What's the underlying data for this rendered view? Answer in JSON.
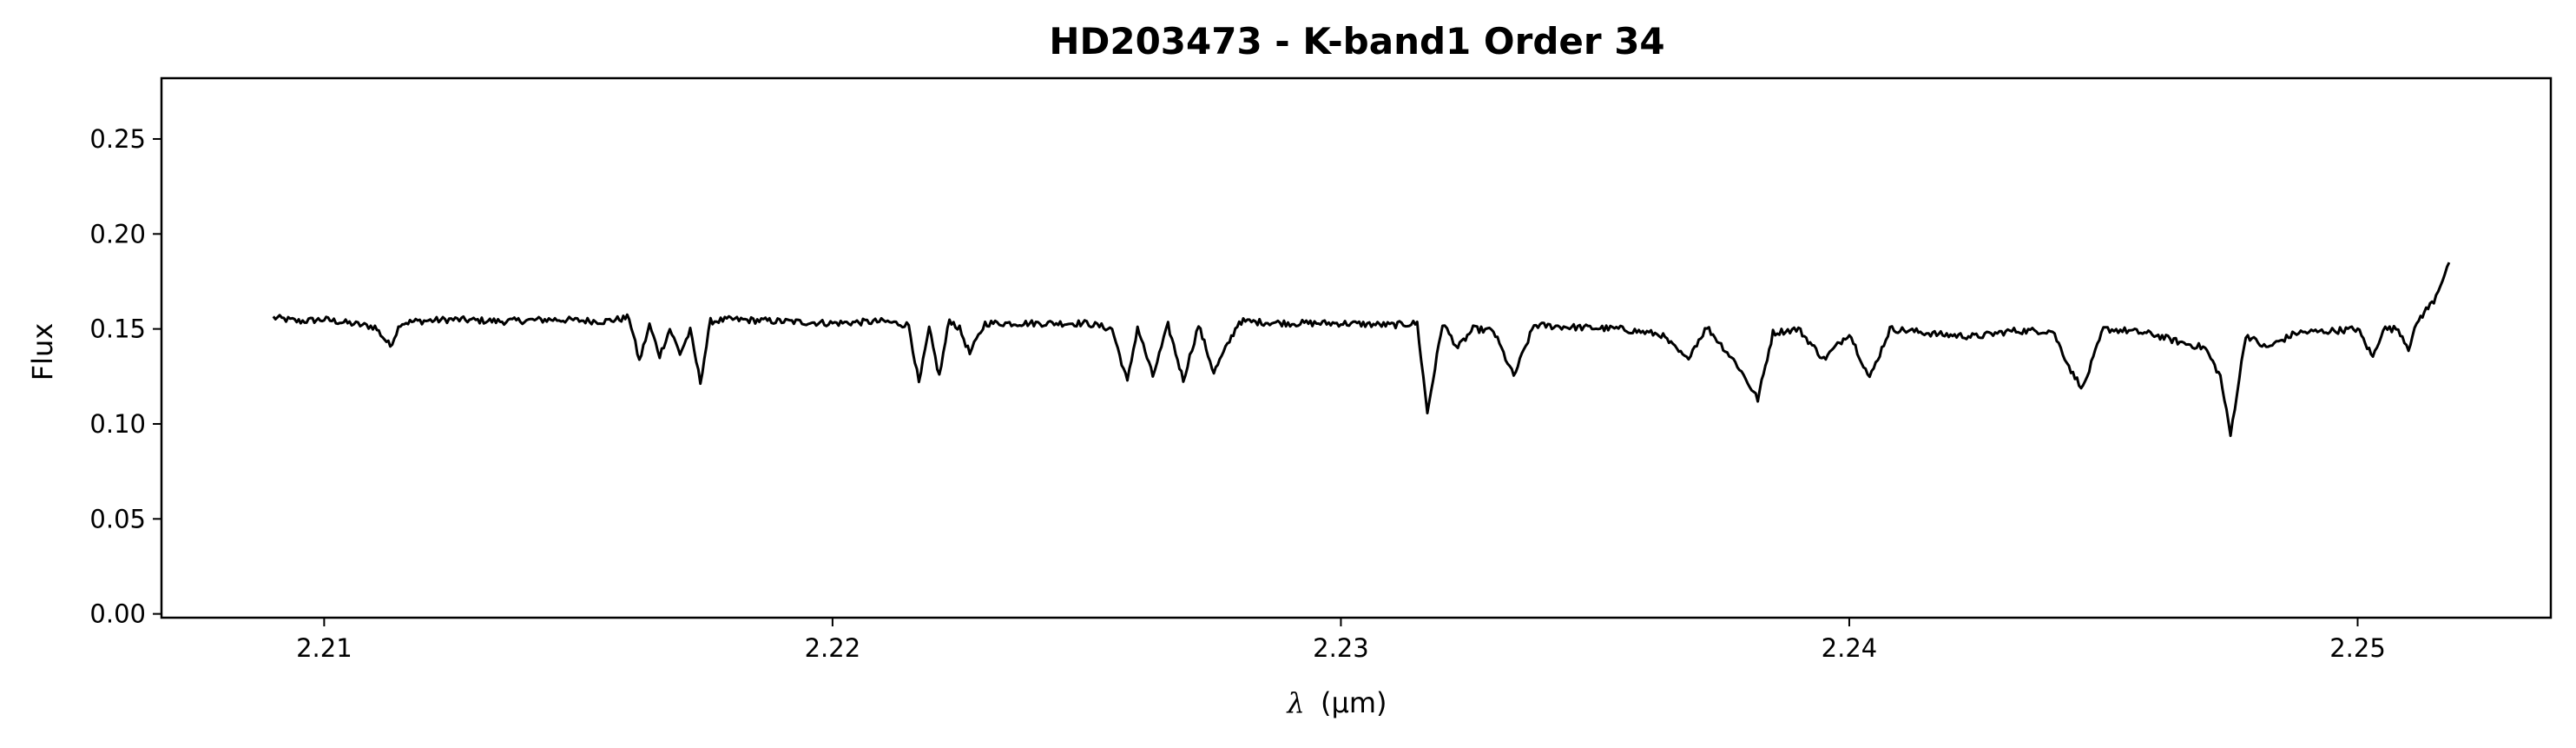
{
  "chart_data": {
    "type": "line",
    "title": "HD203473 - K-band1 Order 34",
    "xlabel_lambda": "λ",
    "xlabel_unit": "(μm)",
    "ylabel": "Flux",
    "xlim": [
      2.2068,
      2.2538
    ],
    "ylim": [
      -0.002,
      0.282
    ],
    "x_ticks": [
      2.21,
      2.22,
      2.23,
      2.24,
      2.25
    ],
    "x_tick_labels": [
      "2.21",
      "2.22",
      "2.23",
      "2.24",
      "2.25"
    ],
    "y_ticks": [
      0.0,
      0.05,
      0.1,
      0.15,
      0.2,
      0.25
    ],
    "y_tick_labels": [
      "0.00",
      "0.05",
      "0.10",
      "0.15",
      "0.20",
      "0.25"
    ],
    "grid": false,
    "legend": "none",
    "line_color": "#000000",
    "series": [
      {
        "x": [
          2.209,
          2.2095,
          2.21,
          2.2105,
          2.211,
          2.2113,
          2.2115,
          2.2118,
          2.2125,
          2.2135,
          2.2145,
          2.2155,
          2.216,
          2.2162,
          2.2164,
          2.2166,
          2.2168,
          2.217,
          2.2172,
          2.2174,
          2.2176,
          2.218,
          2.219,
          2.22,
          2.221,
          2.2215,
          2.2217,
          2.2219,
          2.2221,
          2.2223,
          2.2225,
          2.2227,
          2.223,
          2.224,
          2.225,
          2.2255,
          2.2258,
          2.226,
          2.2263,
          2.2266,
          2.2269,
          2.2272,
          2.2275,
          2.228,
          2.229,
          2.23,
          2.231,
          2.2315,
          2.2317,
          2.232,
          2.2323,
          2.2326,
          2.233,
          2.2334,
          2.2338,
          2.2345,
          2.2355,
          2.2363,
          2.2368,
          2.2372,
          2.2378,
          2.2382,
          2.2385,
          2.239,
          2.2395,
          2.24,
          2.2404,
          2.2408,
          2.2412,
          2.2418,
          2.2425,
          2.2432,
          2.244,
          2.2444,
          2.2446,
          2.245,
          2.2455,
          2.246,
          2.2465,
          2.247,
          2.2473,
          2.2475,
          2.2478,
          2.2482,
          2.2488,
          2.2495,
          2.25,
          2.2503,
          2.2505,
          2.2508,
          2.251,
          2.2512,
          2.2515,
          2.2518
        ],
        "y": [
          0.156,
          0.154,
          0.155,
          0.153,
          0.151,
          0.141,
          0.153,
          0.154,
          0.155,
          0.154,
          0.155,
          0.154,
          0.156,
          0.133,
          0.152,
          0.136,
          0.15,
          0.137,
          0.149,
          0.122,
          0.154,
          0.155,
          0.154,
          0.153,
          0.154,
          0.152,
          0.121,
          0.15,
          0.125,
          0.155,
          0.15,
          0.137,
          0.153,
          0.153,
          0.153,
          0.15,
          0.122,
          0.151,
          0.125,
          0.152,
          0.123,
          0.152,
          0.127,
          0.154,
          0.153,
          0.153,
          0.152,
          0.153,
          0.106,
          0.153,
          0.14,
          0.15,
          0.149,
          0.125,
          0.152,
          0.151,
          0.15,
          0.147,
          0.134,
          0.151,
          0.131,
          0.113,
          0.148,
          0.15,
          0.134,
          0.148,
          0.124,
          0.15,
          0.149,
          0.147,
          0.146,
          0.149,
          0.149,
          0.126,
          0.119,
          0.15,
          0.149,
          0.147,
          0.143,
          0.14,
          0.125,
          0.094,
          0.147,
          0.14,
          0.148,
          0.149,
          0.15,
          0.135,
          0.15,
          0.15,
          0.14,
          0.155,
          0.165,
          0.185
        ]
      }
    ]
  }
}
